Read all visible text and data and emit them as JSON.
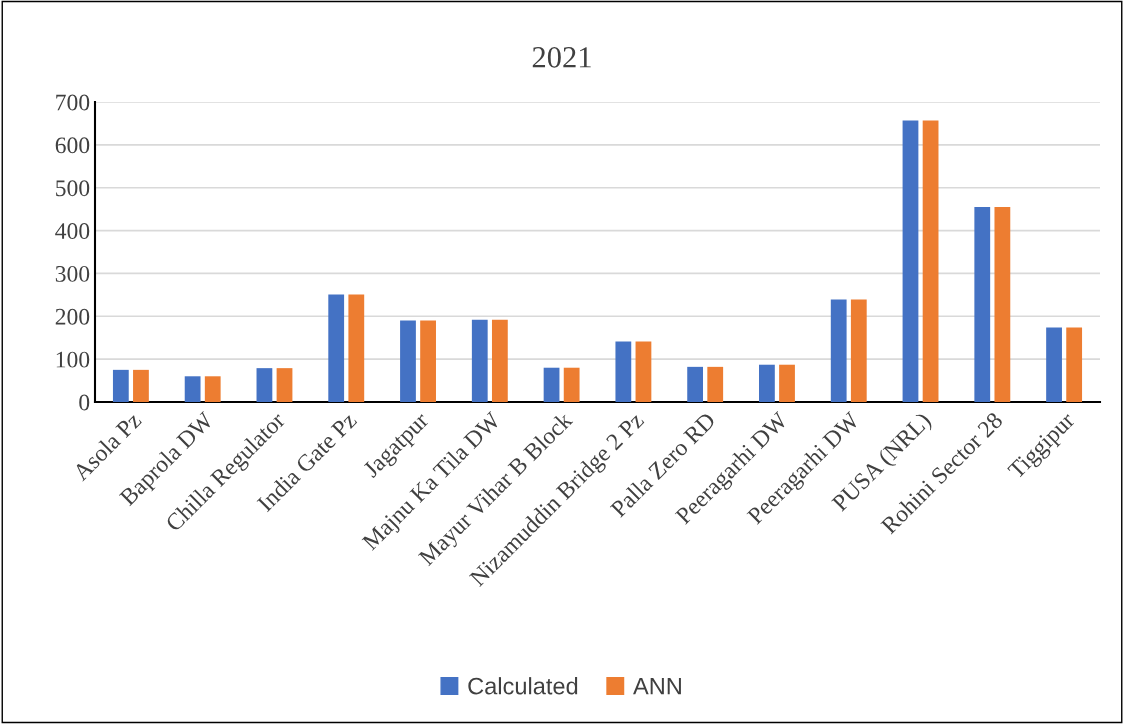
{
  "chart_data": {
    "type": "bar",
    "title": "2021",
    "categories": [
      "Asola Pz",
      "Baprola DW",
      "Chilla Regulator",
      "India Gate Pz",
      "Jagatpur",
      "Majnu Ka Tila DW",
      "Mayur Vihar B Block",
      "Nizamuddin Bridge 2 Pz",
      "Palla Zero RD",
      "Peeragarhi DW",
      "Peeragarhi DW",
      "PUSA (NRL)",
      "Rohini Sector 28",
      "Tiggipur"
    ],
    "series": [
      {
        "name": "Calculated",
        "color": "#4472c4",
        "values": [
          75,
          60,
          79,
          251,
          190,
          192,
          80,
          141,
          82,
          87,
          239,
          657,
          455,
          174
        ]
      },
      {
        "name": "ANN",
        "color": "#ed7d31",
        "values": [
          75,
          60,
          79,
          251,
          190,
          192,
          80,
          141,
          82,
          87,
          239,
          657,
          455,
          174
        ]
      }
    ],
    "ylim": [
      0,
      700
    ],
    "yticks": [
      0,
      100,
      200,
      300,
      400,
      500,
      600,
      700
    ],
    "grid": "y",
    "legend": "bottom"
  }
}
